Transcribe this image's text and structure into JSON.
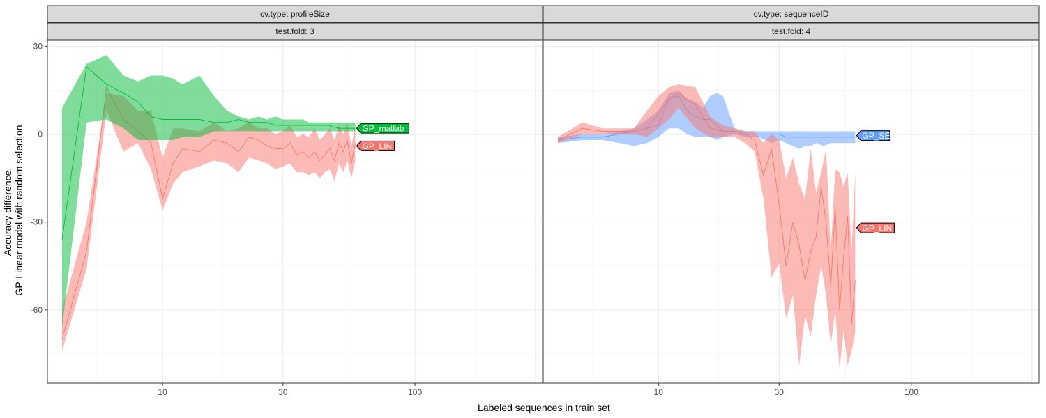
{
  "chart_data": {
    "type": "area",
    "x_scale": "log10",
    "xlabel": "Labeled sequences in train set",
    "ylabel_lines": [
      "Accuracy difference,",
      "GP-Linear model with random selection"
    ],
    "xlim": [
      3.5,
      320
    ],
    "ylim": [
      -85,
      32
    ],
    "x_ticks": [
      10,
      30,
      100
    ],
    "x_tick_labels": [
      "10",
      "30",
      "100"
    ],
    "y_ticks": [
      30,
      0,
      -30,
      -60
    ],
    "y_tick_labels": [
      "30",
      "0",
      "-30",
      "-60"
    ],
    "grid": true,
    "reference_line_y": 0,
    "colors": {
      "GP_LIN": "#F8766D",
      "GP_matlab": "#00BA38",
      "GP_SE": "#619CFF",
      "strip_bg": "#D9D9D9",
      "grid": "#EBEBEB",
      "zero_line": "#B3B3B3"
    },
    "panels": [
      {
        "strip_top": "cv.type: profileSize",
        "strip_bottom": "test.fold: 3",
        "series": [
          {
            "name": "GP_LIN",
            "label_y": -4,
            "x": [
              4,
              5,
              6,
              7,
              8,
              9,
              10,
              11,
              12,
              14,
              16,
              18,
              20,
              22,
              24,
              26,
              28,
              30,
              32,
              34,
              36,
              38,
              40,
              42,
              44,
              46,
              48,
              50,
              52,
              54,
              56,
              58
            ],
            "mean": [
              -70,
              -40,
              16,
              5,
              1,
              -3,
              -22,
              -10,
              -5,
              -6,
              -2,
              -3,
              -6,
              -1,
              -2,
              -4,
              -5,
              -5,
              -3,
              -7,
              -6,
              -8,
              -6,
              -9,
              -7,
              -5,
              -9,
              -3,
              -6,
              -2,
              -10,
              -3
            ],
            "upper": [
              -60,
              -30,
              14,
              13,
              8,
              8,
              -8,
              2,
              2,
              1,
              4,
              1,
              2,
              4,
              2,
              2,
              0,
              1,
              3,
              -1,
              0,
              -1,
              2,
              -2,
              0,
              2,
              -2,
              3,
              0,
              4,
              -4,
              3
            ],
            "lower": [
              -74,
              -46,
              8,
              -6,
              -3,
              -12,
              -26,
              -17,
              -13,
              -11,
              -9,
              -10,
              -13,
              -8,
              -9,
              -10,
              -12,
              -11,
              -10,
              -13,
              -13,
              -14,
              -13,
              -15,
              -13,
              -12,
              -16,
              -10,
              -13,
              -9,
              -15,
              -9
            ]
          },
          {
            "name": "GP_matlab",
            "label_y": 2,
            "x": [
              4,
              5,
              6,
              7,
              8,
              9,
              10,
              11,
              12,
              14,
              16,
              18,
              20,
              22,
              24,
              26,
              28,
              30,
              32,
              34,
              36,
              38,
              40,
              45,
              50,
              55,
              58
            ],
            "mean": [
              -36,
              23,
              17,
              14,
              11,
              6,
              5,
              5,
              5,
              5,
              4,
              4,
              5,
              4,
              4,
              4,
              3,
              3,
              3,
              3,
              3,
              3,
              3,
              3,
              2,
              2,
              2
            ],
            "upper": [
              9,
              24,
              27,
              20,
              18,
              20,
              20,
              19,
              17,
              20,
              13,
              8,
              6,
              5,
              6,
              5,
              6,
              5,
              5,
              5,
              5,
              4,
              4,
              4,
              4,
              4,
              4
            ],
            "lower": [
              -66,
              4,
              5,
              2,
              -2,
              -2,
              -2,
              -2,
              -1,
              -1,
              1,
              1,
              1,
              1,
              1,
              1,
              1,
              1,
              1,
              1,
              1,
              1,
              1,
              1,
              1,
              1,
              1
            ]
          }
        ]
      },
      {
        "strip_top": "cv.type: sequenceID",
        "strip_bottom": "test.fold: 4",
        "series": [
          {
            "name": "GP_SE",
            "label_y": -0.5,
            "x": [
              4,
              5,
              6,
              7,
              8,
              9,
              10,
              11,
              12,
              13,
              14,
              15,
              16,
              17,
              18,
              20,
              22,
              25,
              28,
              30,
              32,
              34,
              36,
              38,
              40,
              42,
              45,
              48,
              50,
              53,
              56,
              60
            ],
            "mean": [
              -2,
              -1,
              -1,
              0,
              1,
              2,
              3,
              12,
              13,
              8,
              6,
              5,
              5,
              3,
              1,
              1,
              0,
              0,
              0,
              0,
              -1,
              -1,
              -1,
              -1,
              -1,
              -1,
              -1,
              -1,
              -1,
              -1,
              -1,
              -1
            ],
            "upper": [
              -1,
              0,
              0,
              1,
              2,
              5,
              8,
              14,
              15,
              12,
              11,
              9,
              13,
              14,
              13,
              2,
              1,
              1,
              1,
              1,
              1,
              1,
              1,
              1,
              1,
              1,
              1,
              1,
              1,
              1,
              1,
              1
            ],
            "lower": [
              -3,
              -2,
              -2,
              -3,
              -4,
              -3,
              -1,
              2,
              2,
              0,
              -1,
              -1,
              -1,
              -2,
              -1,
              0,
              -1,
              -1,
              -3,
              -2,
              -3,
              -4,
              -5,
              -4,
              -4,
              -3,
              -4,
              -3,
              -3,
              -3,
              -3,
              -3
            ]
          },
          {
            "name": "GP_LIN",
            "label_y": -32,
            "x": [
              4,
              5,
              6,
              7,
              8,
              9,
              10,
              11,
              12,
              14,
              16,
              18,
              20,
              22,
              24,
              26,
              28,
              30,
              32,
              34,
              36,
              38,
              40,
              42,
              44,
              46,
              48,
              50,
              52,
              54,
              56,
              58,
              60
            ],
            "mean": [
              -2,
              2,
              1,
              1,
              1,
              2,
              7,
              12,
              14,
              10,
              2,
              1,
              1,
              0,
              -2,
              -14,
              -5,
              -24,
              -45,
              -30,
              -38,
              -50,
              -40,
              -35,
              -18,
              -30,
              -52,
              -25,
              -60,
              -42,
              -28,
              -65,
              -50
            ],
            "upper": [
              -1,
              4,
              2,
              2,
              2,
              8,
              13,
              16,
              17,
              16,
              6,
              3,
              2,
              1,
              1,
              -3,
              0,
              -2,
              -15,
              -8,
              -17,
              -22,
              -5,
              -20,
              -13,
              -5,
              -40,
              -12,
              -13,
              -18,
              -13,
              -40,
              -13
            ],
            "lower": [
              -3,
              0,
              0,
              0,
              0,
              -1,
              2,
              5,
              9,
              2,
              -1,
              -1,
              -1,
              -3,
              -6,
              -22,
              -49,
              -44,
              -63,
              -55,
              -79,
              -62,
              -69,
              -55,
              -45,
              -55,
              -72,
              -60,
              -80,
              -67,
              -79,
              -74,
              -68
            ]
          }
        ]
      }
    ]
  }
}
